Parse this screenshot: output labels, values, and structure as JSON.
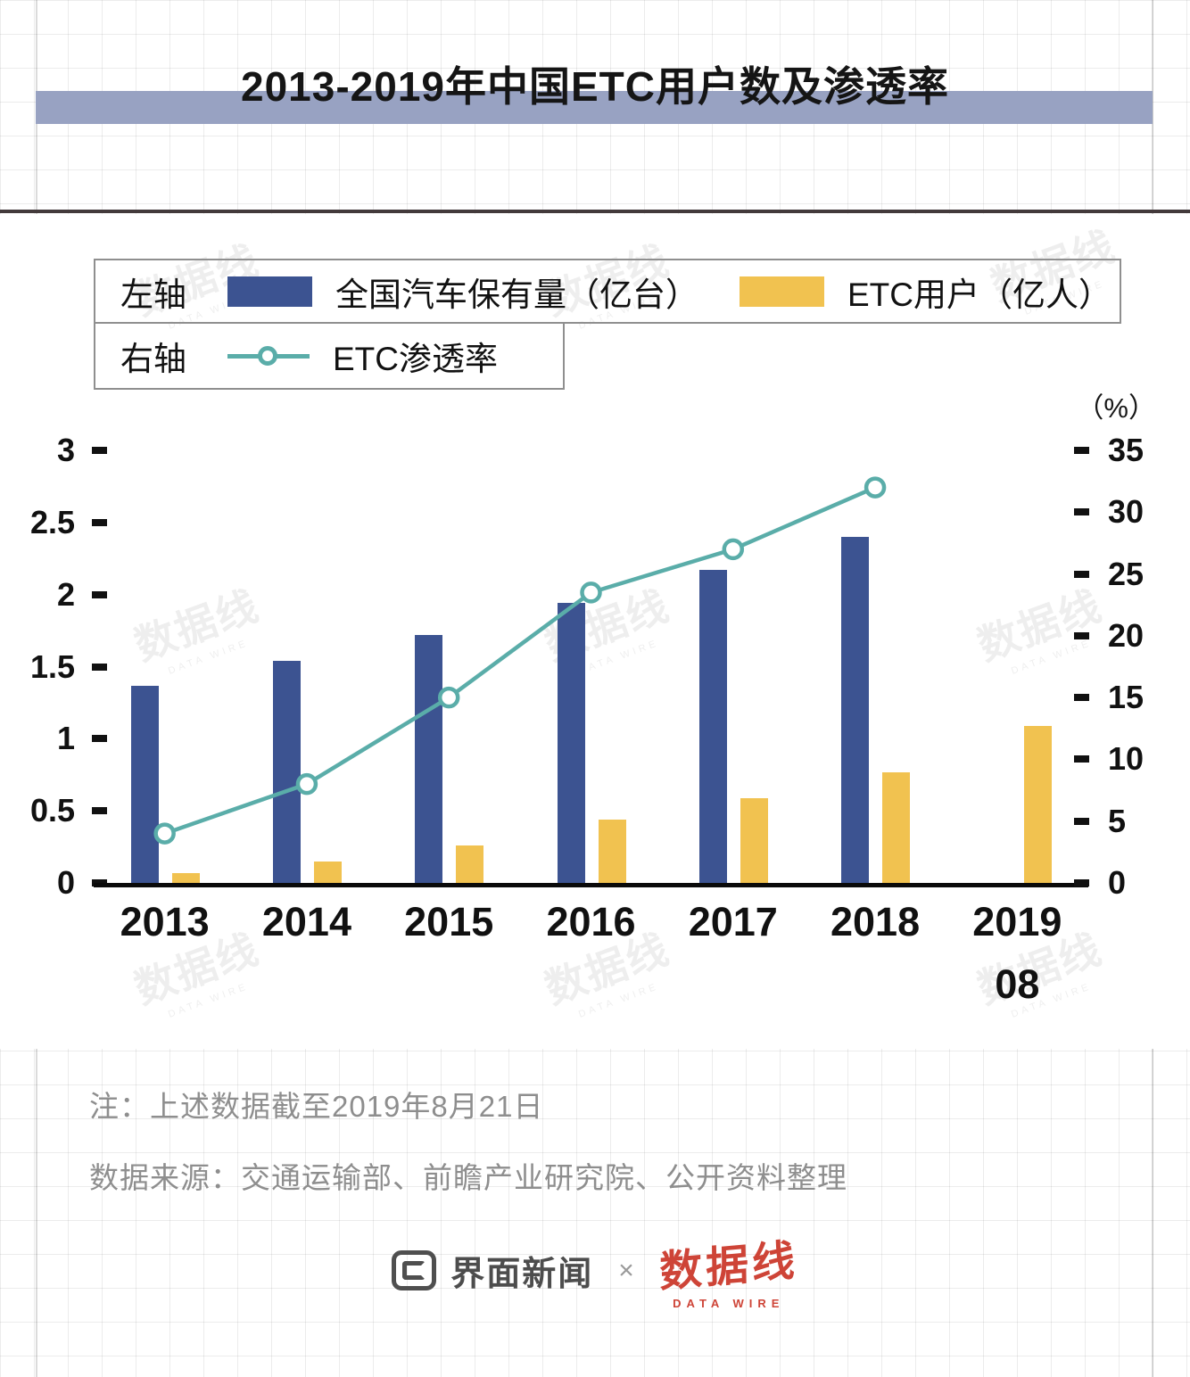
{
  "title": "2013-2019年中国ETC用户数及渗透率",
  "legend": {
    "left_axis": "左轴",
    "right_axis": "右轴",
    "series_car": "全国汽车保有量（亿台）",
    "series_etc": "ETC用户（亿人）",
    "series_rate": "ETC渗透率"
  },
  "right_axis_unit": "（%）",
  "notes": {
    "note": "注：上述数据截至2019年8月21日",
    "source": "数据来源：交通运输部、前瞻产业研究院、公开资料整理"
  },
  "footer": {
    "jiemian": "界面新闻",
    "separator": "×",
    "datawire": "数据线",
    "datawire_sub": "DATA WIRE"
  },
  "watermark": {
    "text": "数据线",
    "sub": "DATA WIRE"
  },
  "colors": {
    "car_bar": "#3c5391",
    "etc_bar": "#f1c250",
    "rate_line": "#5aada9",
    "title_highlight": "#98a2c2"
  },
  "chart_data": {
    "type": "bar+line",
    "title": "2013-2019年中国ETC用户数及渗透率",
    "categories": [
      "2013",
      "2014",
      "2015",
      "2016",
      "2017",
      "2018",
      "2019"
    ],
    "category_subs": [
      "",
      "",
      "",
      "",
      "",
      "",
      "08"
    ],
    "series": [
      {
        "name": "全国汽车保有量（亿台）",
        "type": "bar",
        "axis": "left",
        "color": "#3c5391",
        "values": [
          1.37,
          1.54,
          1.72,
          1.94,
          2.17,
          2.4,
          null
        ]
      },
      {
        "name": "ETC用户（亿人）",
        "type": "bar",
        "axis": "left",
        "color": "#f1c250",
        "values": [
          0.07,
          0.15,
          0.26,
          0.44,
          0.59,
          0.77,
          1.09
        ]
      },
      {
        "name": "ETC渗透率",
        "type": "line",
        "axis": "right",
        "color": "#5aada9",
        "values": [
          4,
          8,
          15,
          23.5,
          27,
          32,
          null
        ]
      }
    ],
    "left_axis": {
      "min": 0,
      "max": 3,
      "ticks": [
        3,
        2.5,
        2,
        1.5,
        1,
        0.5,
        0
      ]
    },
    "right_axis": {
      "min": 0,
      "max": 35,
      "ticks": [
        35,
        30,
        25,
        20,
        15,
        10,
        5,
        0
      ],
      "unit": "（%）"
    },
    "legend_position": "top-left",
    "grid": false
  }
}
